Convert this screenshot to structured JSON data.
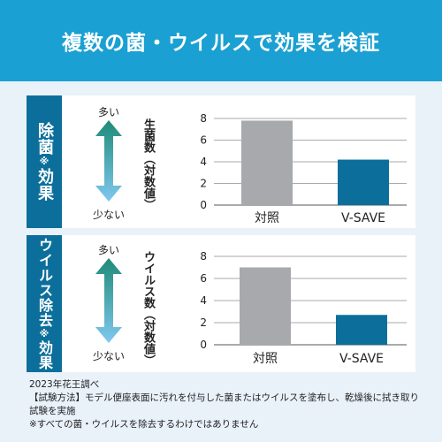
{
  "header": {
    "title": "複数の菌・ウイルスで効果を検証"
  },
  "charts": [
    {
      "side_label": "除菌",
      "side_sup": "※",
      "side_label_after": "効果",
      "more_label": "多い",
      "less_label": "少ない",
      "ylabel": "生菌数（対数値）",
      "colors": {
        "control": "#a7a9ac",
        "product": "#0c6f9b",
        "arrow_top": "#1f8a78",
        "arrow_bottom": "#7fc8ef"
      }
    },
    {
      "side_label": "ウイルス除去",
      "side_sup": "※",
      "side_label_after": "効果",
      "more_label": "多い",
      "less_label": "少ない",
      "ylabel": "ウイルス数（対数値）",
      "colors": {
        "control": "#a7a9ac",
        "product": "#0c6f9b",
        "arrow_top": "#1f8a78",
        "arrow_bottom": "#7fc8ef"
      }
    }
  ],
  "chart_data": [
    {
      "type": "bar",
      "categories": [
        "対照",
        "V-SAVE"
      ],
      "values": [
        7.8,
        4.2
      ],
      "ylabel": "生菌数（対数値）",
      "ylim": [
        0,
        8
      ],
      "yticks": [
        0,
        2,
        4,
        6,
        8
      ],
      "grid": true
    },
    {
      "type": "bar",
      "categories": [
        "対照",
        "V-SAVE"
      ],
      "values": [
        7.0,
        2.7
      ],
      "ylabel": "ウイルス数（対数値）",
      "ylim": [
        0,
        8
      ],
      "yticks": [
        0,
        2,
        4,
        6,
        8
      ],
      "grid": true
    }
  ],
  "notes": {
    "line1": "2023年花王調べ",
    "line2": "【試験方法】モデル便座表面に汚れを付与した菌またはウイルスを塗布し、乾燥後に拭き取り試験を実施",
    "line3": "※すべての菌・ウイルスを除去するわけではありません"
  }
}
